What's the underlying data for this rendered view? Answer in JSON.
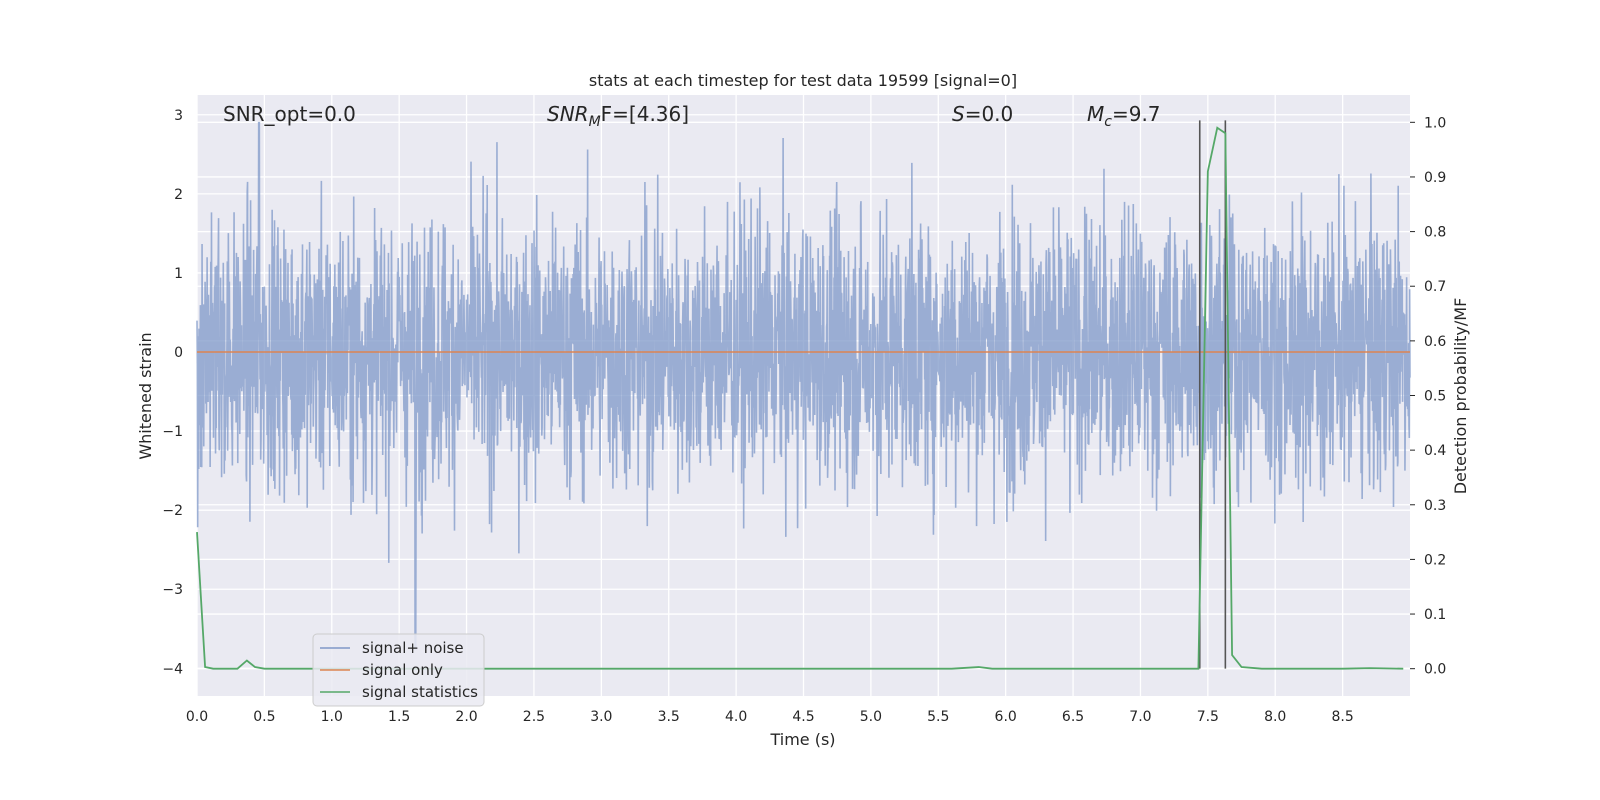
{
  "chart_data": {
    "type": "line",
    "title": "stats at each timestep for test data 19599 [signal=0]",
    "xlabel": "Time (s)",
    "ylabel_left": "Whitened strain",
    "ylabel_right": "Detection probability/MF",
    "xlim": [
      0.0,
      9.0
    ],
    "ylim_left": [
      -4.35,
      3.25
    ],
    "ylim_right": [
      -0.05,
      1.05
    ],
    "xticks": [
      "0.0",
      "0.5",
      "1.0",
      "1.5",
      "2.0",
      "2.5",
      "3.0",
      "3.5",
      "4.0",
      "4.5",
      "5.0",
      "5.5",
      "6.0",
      "6.5",
      "7.0",
      "7.5",
      "8.0",
      "8.5"
    ],
    "yticks_left": [
      "−4",
      "−3",
      "−2",
      "−1",
      "0",
      "1",
      "2",
      "3"
    ],
    "yticks_right": [
      "0.0",
      "0.1",
      "0.2",
      "0.3",
      "0.4",
      "0.5",
      "0.6",
      "0.7",
      "0.8",
      "0.9",
      "1.0"
    ],
    "grid": true,
    "legend_position": "lower-left",
    "annotations": {
      "snr_opt": "SNR_opt=0.0",
      "snr_mf_base": "SNR",
      "snr_mf_sub": "M",
      "snr_mf_tail": "F=[4.36]",
      "s_label": "S",
      "s_value": "=0.0",
      "mc_base": "M",
      "mc_sub": "c",
      "mc_value": "=9.7"
    },
    "vlines_x": [
      7.44,
      7.63
    ],
    "series": [
      {
        "name": "signal+ noise",
        "color": "#7f98c8",
        "axis": "left",
        "description_values": {
          "x_range": [
            0.0,
            9.0
          ],
          "typical_range": [
            -2.0,
            2.5
          ],
          "min": -3.75,
          "max": 2.9
        }
      },
      {
        "name": "signal only",
        "color": "#dd8452",
        "axis": "left",
        "x": [
          0.0,
          9.0
        ],
        "y": [
          0.0,
          0.0
        ]
      },
      {
        "name": "signal statistics",
        "color": "#55a868",
        "axis": "right",
        "x": [
          0.0,
          0.06,
          0.12,
          0.3,
          0.37,
          0.43,
          0.5,
          1.0,
          2.0,
          3.0,
          4.0,
          5.0,
          5.6,
          5.8,
          5.9,
          6.5,
          7.0,
          7.43,
          7.5,
          7.57,
          7.63,
          7.68,
          7.75,
          7.9,
          8.5,
          8.7,
          8.95
        ],
        "y": [
          0.25,
          0.003,
          0.0,
          0.0,
          0.015,
          0.003,
          0.0,
          0.0,
          0.0,
          0.0,
          0.0,
          0.0,
          0.0,
          0.003,
          0.0,
          0.0,
          0.0,
          0.0,
          0.91,
          0.99,
          0.98,
          0.025,
          0.003,
          0.0,
          0.0,
          0.001,
          0.0
        ]
      }
    ]
  }
}
